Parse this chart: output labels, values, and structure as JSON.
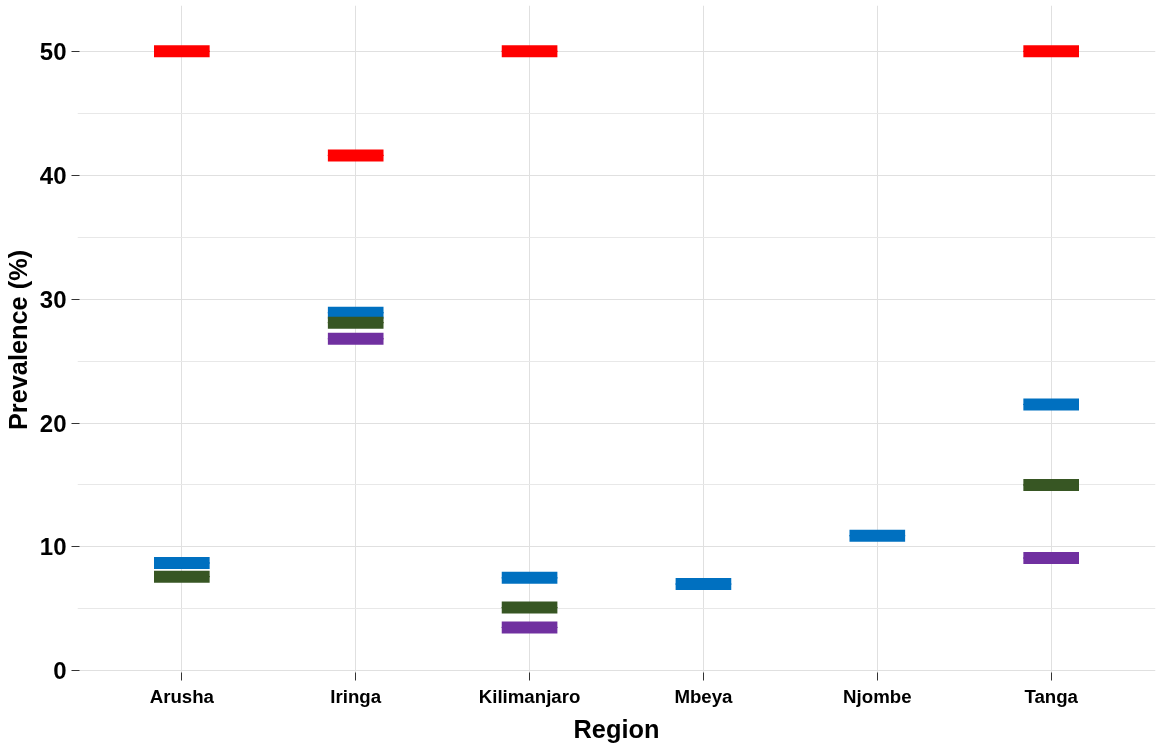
{
  "chart_data": {
    "type": "box",
    "xlabel": "Region",
    "ylabel": "Prevalence (%)",
    "categories": [
      "Arusha",
      "Iringa",
      "Kilimanjaro",
      "Mbeya",
      "Njombe",
      "Tanga"
    ],
    "series": [
      {
        "color": "#ff0000",
        "boxes": [
          {
            "low": 50,
            "q1": 50,
            "median": 50,
            "q3": 50,
            "high": 50
          },
          {
            "low": 41.6,
            "q1": 41.6,
            "median": 41.6,
            "q3": 41.6,
            "high": 41.6
          },
          {
            "low": 50,
            "q1": 50,
            "median": 50,
            "q3": 50,
            "high": 50
          },
          null,
          null,
          {
            "low": 50,
            "q1": 50,
            "median": 50,
            "q3": 50,
            "high": 50
          }
        ]
      },
      {
        "color": "#0070c0",
        "boxes": [
          {
            "low": 8.7,
            "q1": 8.7,
            "median": 8.7,
            "q3": 8.7,
            "high": 8.7
          },
          {
            "low": 28.9,
            "q1": 28.9,
            "median": 28.9,
            "q3": 28.9,
            "high": 28.9
          },
          {
            "low": 7.5,
            "q1": 7.5,
            "median": 7.5,
            "q3": 7.5,
            "high": 7.5
          },
          {
            "low": 7.0,
            "q1": 7.0,
            "median": 7.0,
            "q3": 7.0,
            "high": 7.0
          },
          {
            "low": 10.9,
            "q1": 10.9,
            "median": 10.9,
            "q3": 10.9,
            "high": 10.9
          },
          {
            "low": 21.5,
            "q1": 21.5,
            "median": 21.5,
            "q3": 21.5,
            "high": 21.5
          }
        ]
      },
      {
        "color": "#375623",
        "boxes": [
          {
            "low": 7.6,
            "q1": 7.6,
            "median": 7.6,
            "q3": 7.6,
            "high": 7.6
          },
          {
            "low": 28.1,
            "q1": 28.1,
            "median": 28.1,
            "q3": 28.1,
            "high": 28.1
          },
          {
            "low": 5.1,
            "q1": 5.1,
            "median": 5.1,
            "q3": 5.1,
            "high": 5.1
          },
          null,
          null,
          {
            "low": 15.0,
            "q1": 15.0,
            "median": 15.0,
            "q3": 15.0,
            "high": 15.0
          }
        ]
      },
      {
        "color": "#7030a0",
        "boxes": [
          null,
          {
            "low": 26.8,
            "q1": 26.8,
            "median": 26.8,
            "q3": 26.8,
            "high": 26.8
          },
          {
            "low": 3.5,
            "q1": 3.5,
            "median": 3.5,
            "q3": 3.5,
            "high": 3.5
          },
          null,
          null,
          {
            "low": 9.1,
            "q1": 9.1,
            "median": 9.1,
            "q3": 9.1,
            "high": 9.1
          }
        ]
      }
    ],
    "ylim": [
      -0.3,
      53.7
    ],
    "yticks": [
      0,
      10,
      20,
      30,
      40,
      50
    ],
    "grid": true
  }
}
